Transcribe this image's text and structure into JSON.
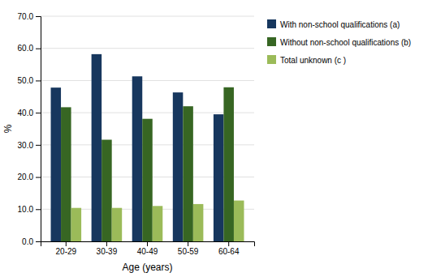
{
  "chart_data": {
    "type": "bar",
    "categories": [
      "20-29",
      "30-39",
      "40-49",
      "50-59",
      "60-64"
    ],
    "series": [
      {
        "name": "With non-school qualifications (a)",
        "color": "#17375E",
        "values": [
          47.8,
          58.2,
          51.3,
          46.3,
          39.5
        ]
      },
      {
        "name": "Without non-school qualifications (b)",
        "color": "#376623",
        "values": [
          41.7,
          31.6,
          38.1,
          42.0,
          47.9
        ]
      },
      {
        "name": "Total unknown (c )",
        "color": "#9BBB59",
        "values": [
          10.4,
          10.4,
          11.0,
          11.6,
          12.7
        ]
      }
    ],
    "xlabel": "Age (years)",
    "ylabel": "%",
    "ylim": [
      0,
      70
    ],
    "yticks": [
      {
        "value": 0,
        "label": "0.0"
      },
      {
        "value": 10,
        "label": "10.0"
      },
      {
        "value": 20,
        "label": "20.0"
      },
      {
        "value": 30,
        "label": "30.0"
      },
      {
        "value": 40,
        "label": "40.0"
      },
      {
        "value": 50,
        "label": "50.0"
      },
      {
        "value": 60,
        "label": "60.0"
      },
      {
        "value": 70,
        "label": "70.0"
      }
    ],
    "grid": true,
    "legend": "right"
  }
}
